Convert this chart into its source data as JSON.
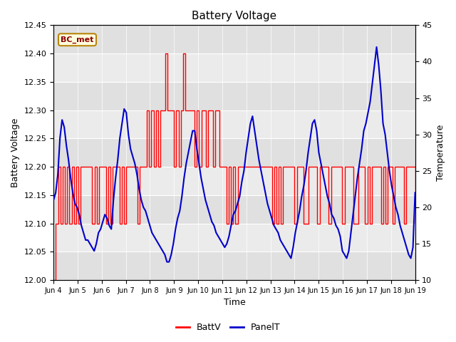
{
  "title": "Battery Voltage",
  "xlabel": "Time",
  "ylabel_left": "Battery Voltage",
  "ylabel_right": "Temperature",
  "ylim_left": [
    12.0,
    12.45
  ],
  "ylim_right": [
    10,
    45
  ],
  "yticks_left": [
    12.0,
    12.05,
    12.1,
    12.15,
    12.2,
    12.25,
    12.3,
    12.35,
    12.4,
    12.45
  ],
  "yticks_right": [
    10,
    15,
    20,
    25,
    30,
    35,
    40,
    45
  ],
  "x_tick_labels": [
    "Jun 4",
    "Jun 5",
    "Jun 6",
    "Jun 7",
    "Jun 8",
    "Jun 9",
    "Jun 10",
    "Jun 11",
    "Jun 12",
    "Jun 13",
    "Jun 14",
    "Jun 15",
    "Jun 16",
    "Jun 17",
    "Jun 18",
    "Jun 19"
  ],
  "annotation_text": "BC_met",
  "annotation_color": "#8B0000",
  "annotation_bg": "#FFFFE0",
  "red_color": "#ff0000",
  "blue_color": "#0000cc",
  "band_colors": [
    "#e8e8e8",
    "#d8d8d8"
  ],
  "fig_bg": "#ffffff",
  "batt_v": [
    12.0,
    12.1,
    12.2,
    12.1,
    12.2,
    12.1,
    12.2,
    12.1,
    12.2,
    12.1,
    12.2,
    12.1,
    12.2,
    12.2,
    12.2,
    12.2,
    12.2,
    12.1,
    12.2,
    12.1,
    12.2,
    12.2,
    12.2,
    12.1,
    12.2,
    12.1,
    12.2,
    12.2,
    12.2,
    12.1,
    12.2,
    12.1,
    12.2,
    12.2,
    12.2,
    12.2,
    12.2,
    12.1,
    12.2,
    12.2,
    12.2,
    12.3,
    12.2,
    12.3,
    12.2,
    12.3,
    12.2,
    12.3,
    12.3,
    12.4,
    12.3,
    12.3,
    12.3,
    12.2,
    12.3,
    12.2,
    12.3,
    12.4,
    12.3,
    12.3,
    12.3,
    12.3,
    12.2,
    12.3,
    12.2,
    12.3,
    12.3,
    12.2,
    12.3,
    12.3,
    12.2,
    12.3,
    12.3,
    12.2,
    12.2,
    12.2,
    12.1,
    12.2,
    12.1,
    12.2,
    12.1,
    12.2,
    12.2,
    12.2,
    12.2,
    12.2,
    12.2,
    12.2,
    12.2,
    12.2,
    12.2,
    12.2,
    12.2,
    12.2,
    12.2,
    12.2,
    12.1,
    12.2,
    12.1,
    12.2,
    12.1,
    12.2,
    12.2,
    12.2,
    12.2,
    12.2,
    12.1,
    12.2,
    12.2,
    12.2,
    12.1,
    12.1,
    12.2,
    12.2,
    12.2,
    12.2,
    12.1,
    12.2,
    12.2,
    12.2,
    12.2,
    12.1,
    12.2,
    12.2,
    12.2,
    12.2,
    12.2,
    12.1,
    12.2,
    12.2,
    12.2,
    12.2,
    12.1,
    12.1,
    12.2,
    12.2,
    12.2,
    12.1,
    12.2,
    12.1,
    12.2,
    12.2,
    12.2,
    12.2,
    12.1,
    12.2,
    12.1,
    12.2,
    12.2,
    12.1,
    12.2,
    12.2,
    12.2,
    12.2,
    12.1,
    12.2,
    12.2,
    12.2,
    12.2,
    12.1
  ],
  "panel_t": [
    21.0,
    22.0,
    24.5,
    29.5,
    32.0,
    31.0,
    28.5,
    26.5,
    24.0,
    22.0,
    20.5,
    20.0,
    19.0,
    17.5,
    16.5,
    15.5,
    15.5,
    15.0,
    14.5,
    14.0,
    15.0,
    16.5,
    17.0,
    18.0,
    19.0,
    18.5,
    17.5,
    17.0,
    21.0,
    24.0,
    26.5,
    29.5,
    31.5,
    33.5,
    33.0,
    30.0,
    28.0,
    27.0,
    26.0,
    24.5,
    22.5,
    21.0,
    20.0,
    19.5,
    18.5,
    17.5,
    16.5,
    16.0,
    15.5,
    15.0,
    14.5,
    14.0,
    13.5,
    12.5,
    12.5,
    13.5,
    15.0,
    17.0,
    18.5,
    19.5,
    21.5,
    24.0,
    26.0,
    27.5,
    29.0,
    30.5,
    30.5,
    28.0,
    26.0,
    24.0,
    22.5,
    21.0,
    20.0,
    19.0,
    18.0,
    17.5,
    16.5,
    16.0,
    15.5,
    15.0,
    14.5,
    15.0,
    16.0,
    17.5,
    19.0,
    19.5,
    20.5,
    21.5,
    23.5,
    25.0,
    27.5,
    29.5,
    31.5,
    32.5,
    30.5,
    28.5,
    26.5,
    25.0,
    23.5,
    22.0,
    20.5,
    19.5,
    18.5,
    17.5,
    17.0,
    16.5,
    15.5,
    15.0,
    14.5,
    14.0,
    13.5,
    13.0,
    14.5,
    16.5,
    18.0,
    19.5,
    21.5,
    23.0,
    25.0,
    27.5,
    29.5,
    31.5,
    32.0,
    30.5,
    27.5,
    26.0,
    24.5,
    23.0,
    21.5,
    20.5,
    19.0,
    18.5,
    17.5,
    17.0,
    16.0,
    14.0,
    13.5,
    13.0,
    14.0,
    16.5,
    19.0,
    21.5,
    24.0,
    26.0,
    28.0,
    30.5,
    31.5,
    33.0,
    34.5,
    37.0,
    39.5,
    42.0,
    39.5,
    36.0,
    31.5,
    30.0,
    27.5,
    25.0,
    23.0,
    21.5,
    20.0,
    19.0,
    17.5,
    16.5,
    15.5,
    14.5,
    13.5,
    13.0,
    14.5,
    22.0
  ]
}
